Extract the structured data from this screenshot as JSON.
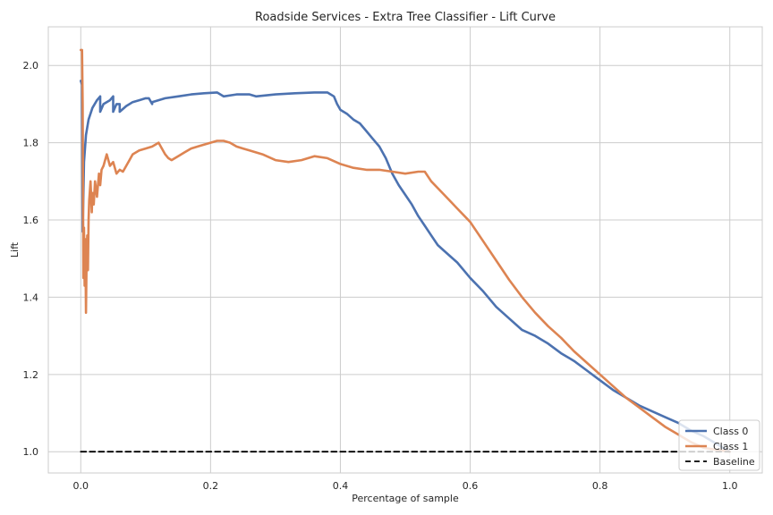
{
  "chart_data": {
    "type": "line",
    "title": "Roadside Services - Extra Tree Classifier - Lift Curve",
    "xlabel": "Percentage of sample",
    "ylabel": "Lift",
    "xlim": [
      -0.05,
      1.05
    ],
    "ylim": [
      0.945,
      2.1
    ],
    "xticks": [
      0.0,
      0.2,
      0.4,
      0.6,
      0.8,
      1.0
    ],
    "xtick_labels": [
      "0.0",
      "0.2",
      "0.4",
      "0.6",
      "0.8",
      "1.0"
    ],
    "yticks": [
      1.0,
      1.2,
      1.4,
      1.6,
      1.8,
      2.0
    ],
    "ytick_labels": [
      "1.0",
      "1.2",
      "1.4",
      "1.6",
      "1.8",
      "2.0"
    ],
    "grid": true,
    "legend_position": "bottom-right",
    "series": [
      {
        "name": "Class 0",
        "color": "#4c72b0",
        "x": [
          0.0,
          0.002,
          0.003,
          0.005,
          0.008,
          0.012,
          0.018,
          0.025,
          0.03,
          0.03,
          0.035,
          0.045,
          0.05,
          0.05,
          0.055,
          0.06,
          0.06,
          0.07,
          0.08,
          0.09,
          0.1,
          0.105,
          0.11,
          0.11,
          0.13,
          0.15,
          0.17,
          0.19,
          0.21,
          0.22,
          0.24,
          0.26,
          0.27,
          0.3,
          0.33,
          0.36,
          0.38,
          0.385,
          0.39,
          0.395,
          0.4,
          0.41,
          0.42,
          0.43,
          0.44,
          0.45,
          0.46,
          0.47,
          0.48,
          0.49,
          0.5,
          0.51,
          0.52,
          0.53,
          0.54,
          0.55,
          0.56,
          0.57,
          0.58,
          0.59,
          0.6,
          0.62,
          0.64,
          0.66,
          0.68,
          0.7,
          0.72,
          0.74,
          0.76,
          0.78,
          0.8,
          0.82,
          0.84,
          0.86,
          0.88,
          0.9,
          0.92,
          0.94,
          0.96,
          0.98,
          1.0
        ],
        "y": [
          1.96,
          1.95,
          1.57,
          1.75,
          1.82,
          1.86,
          1.89,
          1.91,
          1.92,
          1.88,
          1.9,
          1.91,
          1.92,
          1.88,
          1.9,
          1.9,
          1.88,
          1.895,
          1.905,
          1.91,
          1.915,
          1.915,
          1.9,
          1.905,
          1.915,
          1.92,
          1.925,
          1.928,
          1.93,
          1.92,
          1.925,
          1.925,
          1.92,
          1.925,
          1.928,
          1.93,
          1.93,
          1.925,
          1.92,
          1.9,
          1.885,
          1.875,
          1.86,
          1.85,
          1.83,
          1.81,
          1.79,
          1.76,
          1.72,
          1.69,
          1.665,
          1.64,
          1.61,
          1.585,
          1.56,
          1.535,
          1.52,
          1.505,
          1.49,
          1.47,
          1.45,
          1.415,
          1.375,
          1.345,
          1.315,
          1.3,
          1.28,
          1.255,
          1.235,
          1.21,
          1.185,
          1.16,
          1.14,
          1.12,
          1.105,
          1.09,
          1.075,
          1.055,
          1.04,
          1.02,
          1.0
        ]
      },
      {
        "name": "Class 1",
        "color": "#dd8452",
        "x": [
          0.0,
          0.002,
          0.003,
          0.004,
          0.005,
          0.006,
          0.007,
          0.008,
          0.009,
          0.01,
          0.011,
          0.012,
          0.013,
          0.015,
          0.017,
          0.018,
          0.02,
          0.022,
          0.025,
          0.028,
          0.03,
          0.032,
          0.035,
          0.04,
          0.045,
          0.05,
          0.055,
          0.06,
          0.065,
          0.07,
          0.075,
          0.08,
          0.09,
          0.1,
          0.11,
          0.12,
          0.13,
          0.135,
          0.14,
          0.15,
          0.16,
          0.17,
          0.18,
          0.19,
          0.2,
          0.21,
          0.22,
          0.23,
          0.24,
          0.25,
          0.26,
          0.28,
          0.3,
          0.32,
          0.34,
          0.36,
          0.38,
          0.4,
          0.42,
          0.44,
          0.46,
          0.48,
          0.5,
          0.52,
          0.53,
          0.54,
          0.56,
          0.58,
          0.6,
          0.62,
          0.64,
          0.66,
          0.68,
          0.7,
          0.72,
          0.74,
          0.76,
          0.78,
          0.8,
          0.82,
          0.84,
          0.86,
          0.88,
          0.9,
          0.92,
          0.94,
          0.96,
          0.98,
          1.0
        ],
        "y": [
          2.04,
          2.04,
          1.9,
          1.45,
          1.58,
          1.43,
          1.55,
          1.36,
          1.5,
          1.56,
          1.47,
          1.6,
          1.65,
          1.7,
          1.62,
          1.67,
          1.64,
          1.7,
          1.66,
          1.72,
          1.69,
          1.73,
          1.74,
          1.77,
          1.74,
          1.75,
          1.72,
          1.73,
          1.725,
          1.74,
          1.755,
          1.77,
          1.78,
          1.785,
          1.79,
          1.8,
          1.77,
          1.76,
          1.755,
          1.765,
          1.775,
          1.785,
          1.79,
          1.795,
          1.8,
          1.805,
          1.805,
          1.8,
          1.79,
          1.785,
          1.78,
          1.77,
          1.755,
          1.75,
          1.755,
          1.765,
          1.76,
          1.745,
          1.735,
          1.73,
          1.73,
          1.725,
          1.72,
          1.725,
          1.725,
          1.7,
          1.665,
          1.63,
          1.595,
          1.545,
          1.495,
          1.445,
          1.4,
          1.36,
          1.325,
          1.295,
          1.26,
          1.23,
          1.2,
          1.17,
          1.14,
          1.115,
          1.09,
          1.065,
          1.045,
          1.025,
          1.01,
          1.005,
          1.0
        ]
      },
      {
        "name": "Baseline",
        "color": "#000000",
        "dashed": true,
        "x": [
          0.0,
          1.0
        ],
        "y": [
          1.0,
          1.0
        ]
      }
    ]
  }
}
